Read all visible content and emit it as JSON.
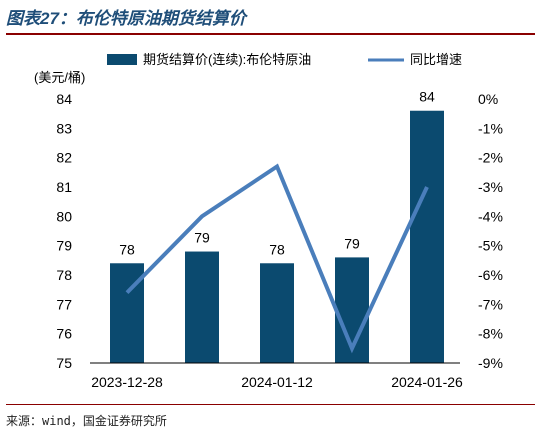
{
  "header": {
    "title": "图表27：布伦特原油期货结算价"
  },
  "footer": {
    "source": "来源：wind，国金证券研究所"
  },
  "chart_data": {
    "type": "bar+line",
    "left_axis": {
      "unit_label": "(美元/桶)",
      "ylim": [
        75,
        84
      ],
      "ticks": [
        "75",
        "76",
        "77",
        "78",
        "79",
        "80",
        "81",
        "82",
        "83",
        "84"
      ]
    },
    "right_axis": {
      "ylim": [
        -9,
        0
      ],
      "ticks": [
        "0%",
        "-1%",
        "-2%",
        "-3%",
        "-4%",
        "-5%",
        "-6%",
        "-7%",
        "-8%",
        "-9%"
      ]
    },
    "x_tick_labels": [
      "2023-12-28",
      "2024-01-12",
      "2024-01-26"
    ],
    "bar_series": {
      "name": "期货结算价(连续):布伦特原油",
      "color": "#0b4a6f",
      "values": [
        78.4,
        78.8,
        78.4,
        78.6,
        83.6
      ],
      "data_labels": [
        "78",
        "79",
        "78",
        "79",
        "84"
      ]
    },
    "line_series": {
      "name": "同比增速",
      "color": "#4a7ebb",
      "values": [
        -6.6,
        -4.0,
        -2.3,
        -8.5,
        -3.0
      ]
    },
    "grid": false,
    "legend_position": "top"
  }
}
